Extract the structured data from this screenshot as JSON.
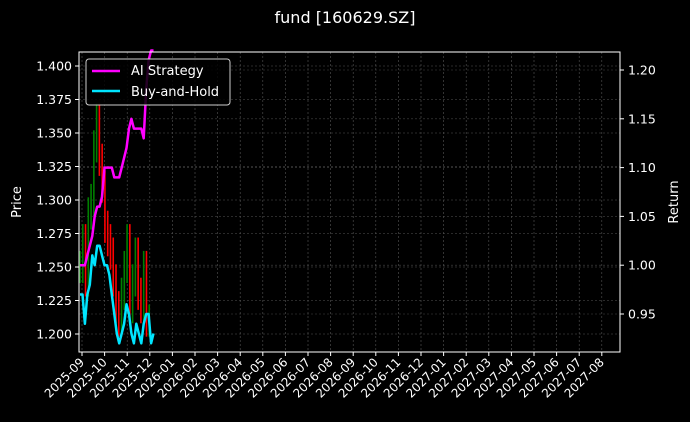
{
  "chart_data": {
    "type": "line",
    "title": "fund [160629.SZ]",
    "xlabel": "",
    "ylabel": "Price",
    "ylabel_right": "Return",
    "ylim": [
      1.187,
      1.411
    ],
    "ylim_right": [
      0.9105,
      1.2165
    ],
    "grid": true,
    "legend_position": "upper left",
    "left_ticks": [
      "1.200",
      "1.225",
      "1.250",
      "1.275",
      "1.300",
      "1.325",
      "1.350",
      "1.375",
      "1.400"
    ],
    "right_ticks": [
      "0.95",
      "1.00",
      "1.05",
      "1.10",
      "1.15",
      "1.20"
    ],
    "x_ticks": [
      "2025-09",
      "2025-10",
      "2025-11",
      "2025-12",
      "2026-01",
      "2026-02",
      "2026-03",
      "2026-04",
      "2026-05",
      "2026-06",
      "2026-07",
      "2026-08",
      "2026-09",
      "2026-10",
      "2026-11",
      "2026-12",
      "2027-01",
      "2027-02",
      "2027-03",
      "2027-04",
      "2027-05",
      "2027-06",
      "2027-07",
      "2027-08"
    ],
    "series": [
      {
        "name": "AI Strategy",
        "axis": "right",
        "color": "#ff00ff",
        "x": [
          0.0,
          0.1,
          0.2,
          0.3,
          0.4,
          0.5,
          0.6,
          0.7,
          0.8,
          0.9,
          1.0,
          1.1,
          1.2,
          1.3,
          1.4,
          1.5,
          1.6,
          1.7,
          1.8,
          1.9,
          2.0,
          2.1,
          2.2,
          2.3,
          2.4,
          2.5,
          2.6,
          2.7,
          2.8,
          2.9,
          3.0
        ],
        "values": [
          1.0,
          1.0,
          1.0,
          1.01,
          1.02,
          1.03,
          1.05,
          1.06,
          1.06,
          1.07,
          1.1,
          1.1,
          1.1,
          1.1,
          1.09,
          1.09,
          1.09,
          1.1,
          1.11,
          1.12,
          1.14,
          1.15,
          1.14,
          1.14,
          1.14,
          1.14,
          1.13,
          1.18,
          1.21,
          1.22,
          1.22
        ]
      },
      {
        "name": "Buy-and-Hold",
        "axis": "right",
        "color": "#00e5ff",
        "x": [
          0.0,
          0.1,
          0.2,
          0.3,
          0.4,
          0.5,
          0.6,
          0.7,
          0.8,
          0.9,
          1.0,
          1.1,
          1.2,
          1.3,
          1.4,
          1.5,
          1.6,
          1.7,
          1.8,
          1.9,
          2.0,
          2.1,
          2.2,
          2.3,
          2.4,
          2.5,
          2.6,
          2.7,
          2.8,
          2.9,
          3.0
        ],
        "values": [
          0.97,
          0.97,
          0.94,
          0.97,
          0.98,
          1.01,
          1.0,
          1.02,
          1.02,
          1.01,
          1.0,
          1.0,
          0.99,
          0.97,
          0.95,
          0.93,
          0.92,
          0.93,
          0.94,
          0.96,
          0.95,
          0.93,
          0.92,
          0.94,
          0.93,
          0.92,
          0.94,
          0.95,
          0.95,
          0.92,
          0.93
        ]
      },
      {
        "name": "Price (candles)",
        "axis": "left",
        "colors": {
          "up": "#008000",
          "down": "#ff0000"
        },
        "values": [
          1.25,
          1.27,
          1.24,
          1.29,
          1.3,
          1.34,
          1.36,
          1.33,
          1.31,
          1.28,
          1.27,
          1.26,
          1.24,
          1.22,
          1.21,
          1.23,
          1.25,
          1.27,
          1.22,
          1.24,
          1.26,
          1.23,
          1.22,
          1.25,
          1.21,
          1.21
        ]
      }
    ]
  },
  "legend": {
    "items": [
      {
        "label": "AI Strategy",
        "color": "#ff00ff"
      },
      {
        "label": "Buy-and-Hold",
        "color": "#00e5ff"
      }
    ]
  }
}
